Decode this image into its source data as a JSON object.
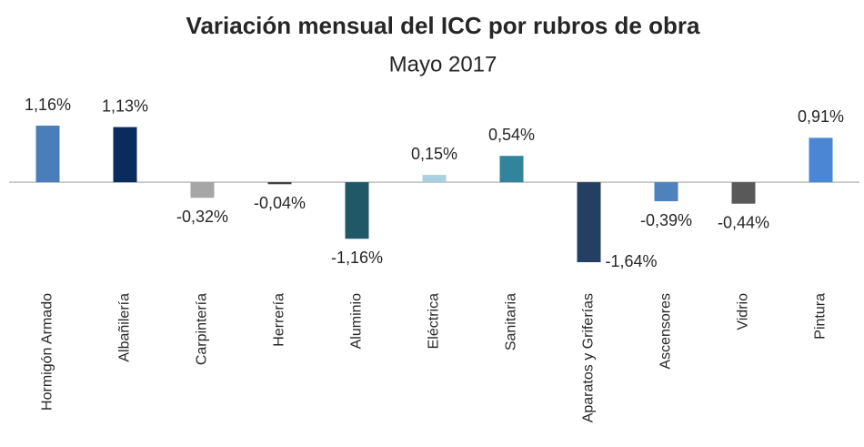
{
  "chart_data": {
    "type": "bar",
    "title": "Variación mensual del ICC por rubros de obra",
    "subtitle": "Mayo 2017",
    "categories": [
      "Hormigón Armado",
      "Albañilería",
      "Carpintería",
      "Herrería",
      "Aluminio",
      "Eléctrica",
      "Sanitaria",
      "Aparatos y Griferías",
      "Ascensores",
      "Vidrio",
      "Pintura"
    ],
    "values": [
      1.16,
      1.13,
      -0.32,
      -0.04,
      -1.16,
      0.15,
      0.54,
      -1.64,
      -0.39,
      -0.44,
      0.91
    ],
    "value_labels": [
      "1,16%",
      "1,13%",
      "-0,32%",
      "-0,04%",
      "-1,16%",
      "0,15%",
      "0,54%",
      "-1,64%",
      "-0,39%",
      "-0,44%",
      "0,91%"
    ],
    "colors": [
      "#4a7ebb",
      "#0b2a5e",
      "#a6a6a6",
      "#3a3a3a",
      "#215868",
      "#a8d0e0",
      "#31849b",
      "#243f60",
      "#4f81bd",
      "#595959",
      "#4a86d4"
    ]
  }
}
